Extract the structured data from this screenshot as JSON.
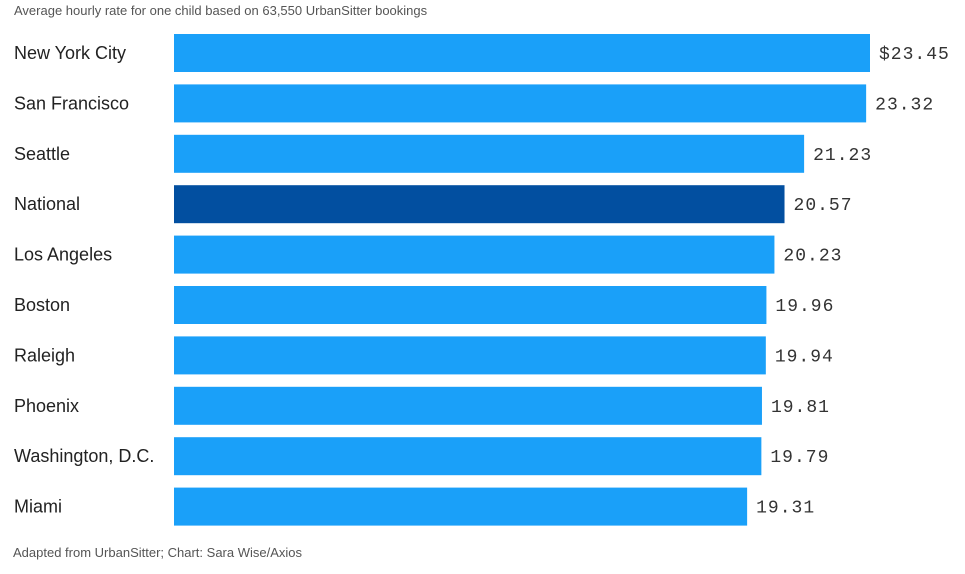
{
  "chart_data": {
    "type": "bar",
    "orientation": "horizontal",
    "title": "",
    "subtitle": "Average hourly rate for one child based on 63,550 UrbanSitter bookings",
    "source": "Adapted from UrbanSitter; Chart: Sara Wise/Axios",
    "categories": [
      "New York City",
      "San Francisco",
      "Seattle",
      "National",
      "Los Angeles",
      "Boston",
      "Raleigh",
      "Phoenix",
      "Washington, D.C.",
      "Miami"
    ],
    "values": [
      23.45,
      23.32,
      21.23,
      20.57,
      20.23,
      19.96,
      19.94,
      19.81,
      19.79,
      19.31
    ],
    "value_labels": [
      "$23.45",
      "23.32",
      "21.23",
      "20.57",
      "20.23",
      "19.96",
      "19.94",
      "19.81",
      "19.79",
      "19.31"
    ],
    "highlight_category": "National",
    "xlim": [
      0,
      23.45
    ],
    "xlabel": "",
    "ylabel": "",
    "grid": false,
    "colors": {
      "bar": "#1aa0f9",
      "highlight": "#024fa0"
    }
  }
}
